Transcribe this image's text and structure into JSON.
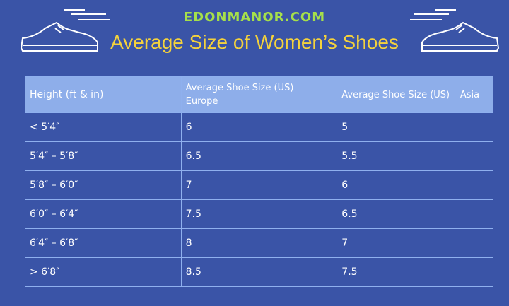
{
  "header": {
    "brand": "EDONMANOR.COM",
    "title": "Average Size of Women’s Shoes"
  },
  "table": {
    "columns": [
      "Height (ft & in)",
      "Average Shoe Size (US) – Europe",
      "Average Shoe Size (US) – Asia"
    ],
    "rows": [
      [
        "< 5′4″",
        "6",
        "5"
      ],
      [
        "5′4″ – 5′8″",
        "6.5",
        "5.5"
      ],
      [
        "5′8″ – 6′0″",
        "7",
        "6"
      ],
      [
        "6′0″ – 6′4″",
        "7.5",
        "6.5"
      ],
      [
        "6′4″ – 6′8″",
        "8",
        "7"
      ],
      [
        "> 6′8″",
        "8.5",
        "7.5"
      ]
    ]
  }
}
